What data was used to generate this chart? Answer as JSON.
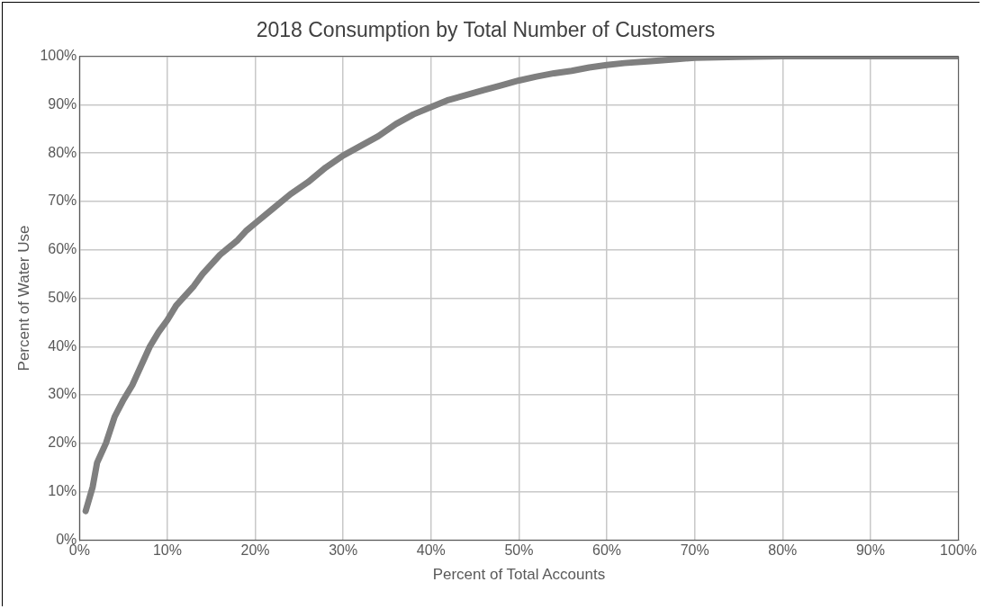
{
  "chart_data": {
    "type": "line",
    "title": "2018 Consumption by Total Number of Customers",
    "xlabel": "Percent of Total Accounts",
    "ylabel": "Percent of Water Use",
    "x": [
      0.7,
      1.5,
      2,
      3,
      4,
      5,
      6,
      7,
      8,
      9,
      10,
      11,
      12,
      13,
      14,
      15,
      16,
      17,
      18,
      19,
      20,
      22,
      24,
      26,
      28,
      30,
      32,
      34,
      36,
      38,
      40,
      42,
      44,
      46,
      48,
      50,
      52,
      54,
      56,
      58,
      60,
      62,
      65,
      68,
      70,
      75,
      80,
      90,
      100
    ],
    "series": [
      {
        "color": "#7f7f7f",
        "values": [
          6,
          11,
          16,
          20,
          25.5,
          29,
          32,
          36,
          40,
          43,
          45.5,
          48.5,
          50.5,
          52.5,
          55,
          57,
          59,
          60.5,
          62,
          64,
          65.5,
          68.5,
          71.5,
          74,
          77,
          79.5,
          81.5,
          83.5,
          86,
          88,
          89.5,
          91,
          92,
          93,
          94,
          95,
          95.8,
          96.5,
          97,
          97.7,
          98.2,
          98.6,
          99,
          99.4,
          99.7,
          99.9,
          100,
          100,
          100
        ]
      }
    ],
    "xlim": [
      0,
      100
    ],
    "ylim": [
      0,
      100
    ],
    "xticks": [
      {
        "value": 0,
        "label": "0%"
      },
      {
        "value": 10,
        "label": "10%"
      },
      {
        "value": 20,
        "label": "20%"
      },
      {
        "value": 30,
        "label": "30%"
      },
      {
        "value": 40,
        "label": "40%"
      },
      {
        "value": 50,
        "label": "50%"
      },
      {
        "value": 60,
        "label": "60%"
      },
      {
        "value": 70,
        "label": "70%"
      },
      {
        "value": 80,
        "label": "80%"
      },
      {
        "value": 90,
        "label": "90%"
      },
      {
        "value": 100,
        "label": "100%"
      }
    ],
    "yticks": [
      {
        "value": 0,
        "label": "0%"
      },
      {
        "value": 10,
        "label": "10%"
      },
      {
        "value": 20,
        "label": "20%"
      },
      {
        "value": 30,
        "label": "30%"
      },
      {
        "value": 40,
        "label": "40%"
      },
      {
        "value": 50,
        "label": "50%"
      },
      {
        "value": 60,
        "label": "60%"
      },
      {
        "value": 70,
        "label": "70%"
      },
      {
        "value": 80,
        "label": "80%"
      },
      {
        "value": 90,
        "label": "90%"
      },
      {
        "value": 100,
        "label": "100%"
      }
    ],
    "grid": true,
    "legend": false,
    "marker": "none",
    "line_style": "solid"
  }
}
